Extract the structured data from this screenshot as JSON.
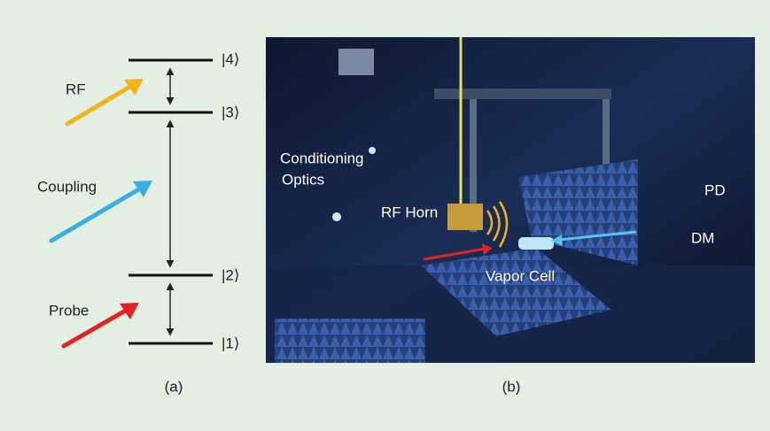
{
  "levels": [
    "|4⟩",
    "|3⟩",
    "|2⟩",
    "|1⟩"
  ],
  "transitions": [
    "RF",
    "Coupling",
    "Probe"
  ],
  "photo_labels": {
    "conditioning_optics": [
      "Conditioning",
      "Optics"
    ],
    "rf_horn": "RF Horn",
    "vapor_cell": "Vapor Cell",
    "pd": "PD",
    "dm": "DM"
  },
  "captions": [
    "(a)",
    "(b)"
  ]
}
